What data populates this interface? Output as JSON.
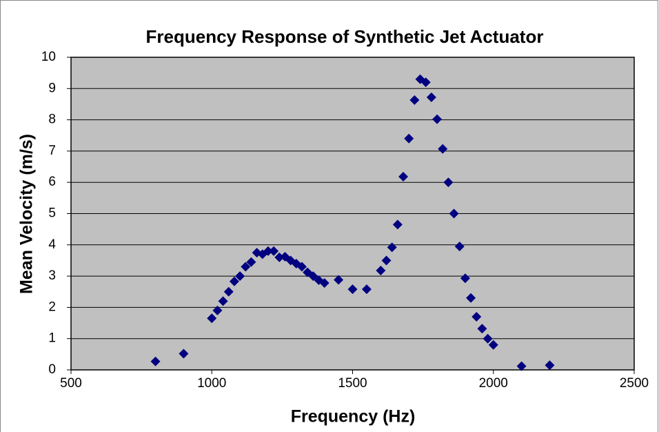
{
  "chart_data": {
    "type": "scatter",
    "title": "Frequency Response of Synthetic Jet Actuator",
    "x_label": "Frequency (Hz)",
    "y_label": "Mean Velocity (m/s)",
    "series": [
      {
        "color": "#000080",
        "x": [
          800,
          900,
          1000,
          1020,
          1040,
          1060,
          1080,
          1100,
          1120,
          1140,
          1160,
          1180,
          1200,
          1220,
          1240,
          1260,
          1280,
          1300,
          1320,
          1340,
          1360,
          1380,
          1400,
          1450,
          1500,
          1550,
          1600,
          1620,
          1640,
          1660,
          1680,
          1700,
          1720,
          1740,
          1760,
          1780,
          1800,
          1820,
          1840,
          1860,
          1880,
          1900,
          1920,
          1940,
          1960,
          1980,
          2000,
          2100,
          2200
        ],
        "values": [
          0.27,
          0.52,
          1.65,
          1.9,
          2.2,
          2.5,
          2.83,
          3.0,
          3.3,
          3.45,
          3.75,
          3.7,
          3.8,
          3.8,
          3.6,
          3.62,
          3.5,
          3.4,
          3.3,
          3.12,
          3.0,
          2.87,
          2.78,
          2.88,
          2.58,
          2.58,
          3.18,
          3.5,
          3.92,
          4.65,
          6.18,
          7.4,
          8.63,
          9.3,
          9.2,
          8.72,
          8.02,
          7.07,
          6.0,
          5.0,
          3.95,
          2.93,
          2.3,
          1.7,
          1.32,
          1.0,
          0.8,
          0.12,
          0.15
        ]
      }
    ],
    "xlim": [
      500,
      2500
    ],
    "xticks": [
      500,
      1000,
      1500,
      2000,
      2500
    ],
    "ylim": [
      0,
      10
    ],
    "yticks": [
      0,
      1,
      2,
      3,
      4,
      5,
      6,
      7,
      8,
      9,
      10
    ],
    "grid": true,
    "plot_background": "#c0c0c0"
  }
}
